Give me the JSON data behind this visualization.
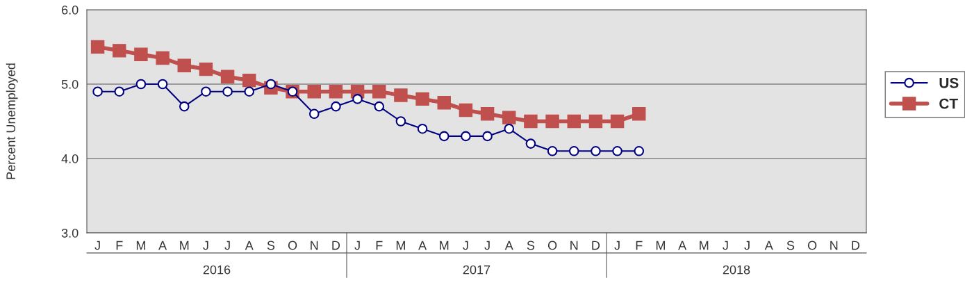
{
  "chart_data": {
    "type": "line",
    "ylabel": "Percent Unemployed",
    "categories": [
      "J",
      "F",
      "M",
      "A",
      "M",
      "J",
      "J",
      "A",
      "S",
      "O",
      "N",
      "D",
      "J",
      "F",
      "M",
      "A",
      "M",
      "J",
      "J",
      "A",
      "S",
      "O",
      "N",
      "D",
      "J",
      "F",
      "M",
      "A",
      "M",
      "J",
      "J",
      "A",
      "S",
      "O",
      "N",
      "D"
    ],
    "annotations": [
      "2016",
      "2017",
      "2018"
    ],
    "series": [
      {
        "name": "US",
        "color": "#000080",
        "marker": "circle",
        "values": [
          4.9,
          4.9,
          5.0,
          5.0,
          4.7,
          4.9,
          4.9,
          4.9,
          5.0,
          4.9,
          4.6,
          4.7,
          4.8,
          4.7,
          4.5,
          4.4,
          4.3,
          4.3,
          4.3,
          4.4,
          4.2,
          4.1,
          4.1,
          4.1,
          4.1,
          4.1,
          null,
          null,
          null,
          null,
          null,
          null,
          null,
          null,
          null,
          null
        ]
      },
      {
        "name": "CT",
        "color": "#c0504d",
        "marker": "square",
        "values": [
          5.5,
          5.45,
          5.4,
          5.35,
          5.25,
          5.2,
          5.1,
          5.05,
          4.95,
          4.9,
          4.9,
          4.9,
          4.9,
          4.9,
          4.85,
          4.8,
          4.75,
          4.65,
          4.6,
          4.55,
          4.5,
          4.5,
          4.5,
          4.5,
          4.5,
          4.6,
          null,
          null,
          null,
          null,
          null,
          null,
          null,
          null,
          null,
          null
        ]
      }
    ],
    "ylim": [
      3,
      6
    ],
    "yticks": [
      {
        "value": 3,
        "label": "3.0"
      },
      {
        "value": 4,
        "label": "4.0"
      },
      {
        "value": 5,
        "label": "5.0"
      },
      {
        "value": 6,
        "label": "6.0"
      }
    ],
    "grid": "y",
    "legend": "right"
  }
}
